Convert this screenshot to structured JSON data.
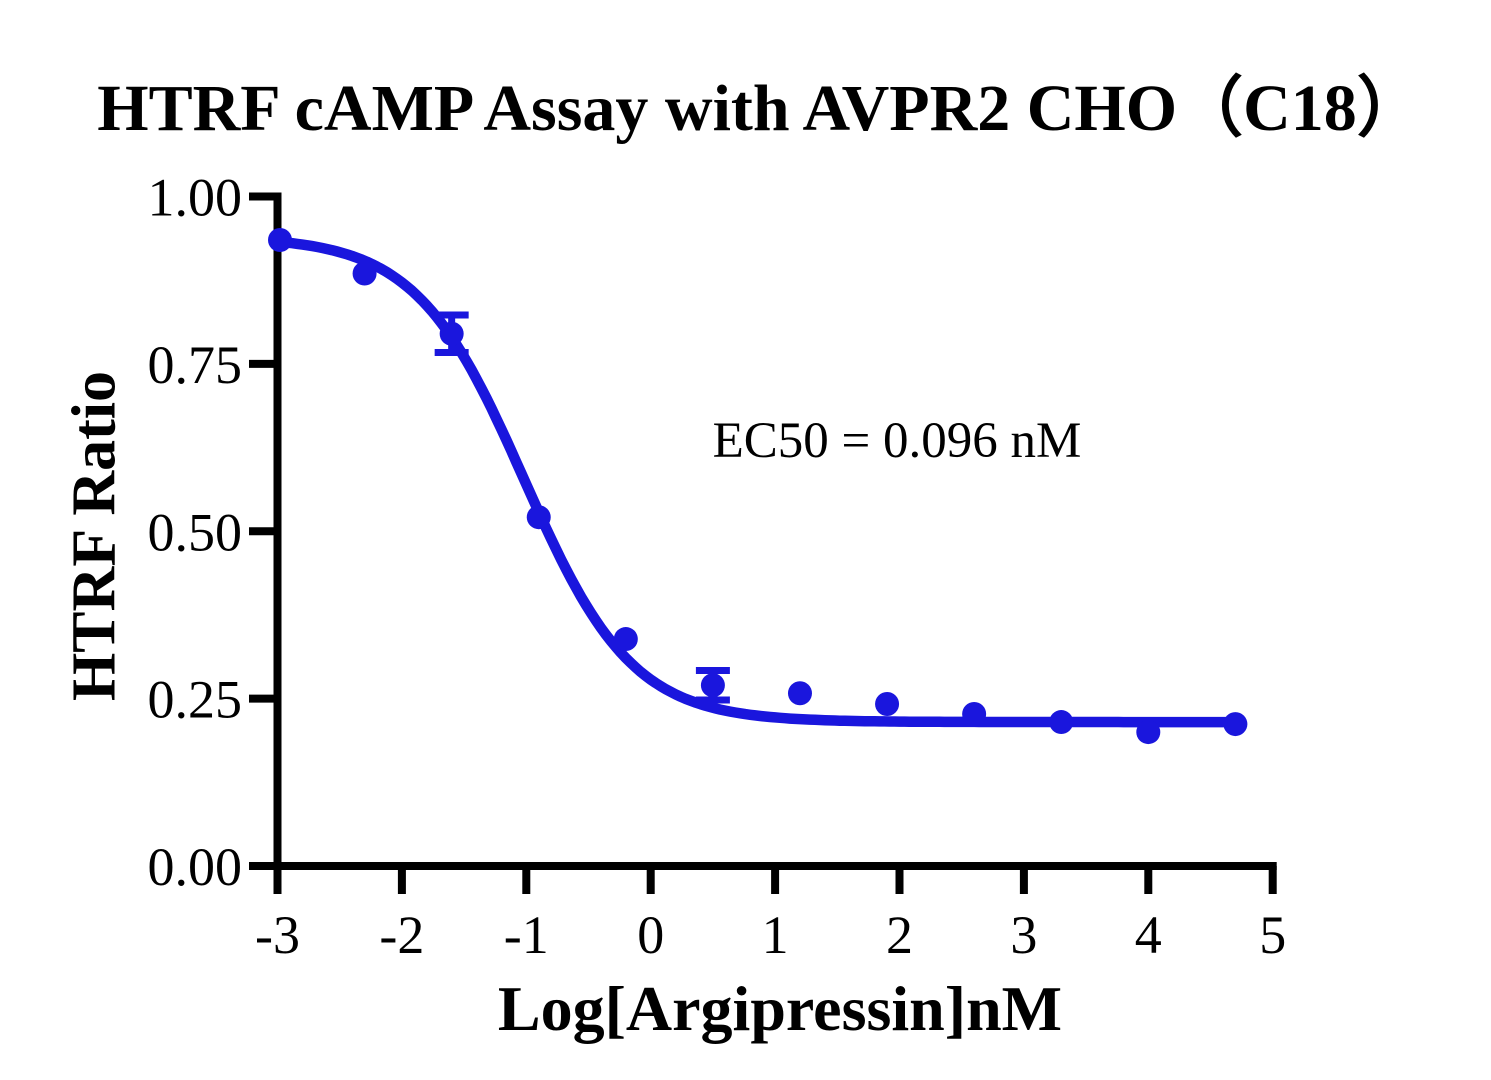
{
  "page": {
    "background": "#ffffff"
  },
  "chart_data": {
    "type": "scatter",
    "title": "HTRF cAMP Assay with AVPR2 CHO（C18）",
    "xlabel": "Log[Argipressin]nM",
    "ylabel": "HTRF Ratio",
    "annotation": "EC50 = 0.096 nM",
    "ec50_nM": 0.096,
    "xlim": [
      -3,
      5
    ],
    "ylim": [
      0,
      1
    ],
    "grid": false,
    "legend_position": "none",
    "x_ticks": [
      -3,
      -2,
      -1,
      0,
      1,
      2,
      3,
      4,
      5
    ],
    "x_tick_labels": [
      "-3",
      "-2",
      "-1",
      "0",
      "1",
      "2",
      "3",
      "4",
      "5"
    ],
    "y_ticks": [
      0,
      0.25,
      0.5,
      0.75,
      1.0
    ],
    "y_tick_labels": [
      "0.00",
      "0.25",
      "0.50",
      "0.75",
      "1.00"
    ],
    "points": [
      {
        "x": -3.0,
        "y": 0.935
      },
      {
        "x": -2.3,
        "y": 0.885
      },
      {
        "x": -1.6,
        "y": 0.795,
        "y_err": 0.028
      },
      {
        "x": -0.9,
        "y": 0.521
      },
      {
        "x": -0.2,
        "y": 0.339
      },
      {
        "x": 0.5,
        "y": 0.27,
        "y_err": 0.022
      },
      {
        "x": 1.2,
        "y": 0.258
      },
      {
        "x": 1.9,
        "y": 0.242
      },
      {
        "x": 2.6,
        "y": 0.227
      },
      {
        "x": 3.3,
        "y": 0.215
      },
      {
        "x": 4.0,
        "y": 0.2
      },
      {
        "x": 4.7,
        "y": 0.212
      }
    ],
    "fit_curve": {
      "model": "4PL sigmoidal dose-response",
      "top": 0.94,
      "bottom": 0.215,
      "logEC50": -1.018,
      "hill_slope": 1.0,
      "x_start": -3.0,
      "x_end": 4.73
    },
    "colors": {
      "series": "#1a16dd",
      "axis": "#000000",
      "text": "#000000",
      "background": "#ffffff"
    }
  }
}
